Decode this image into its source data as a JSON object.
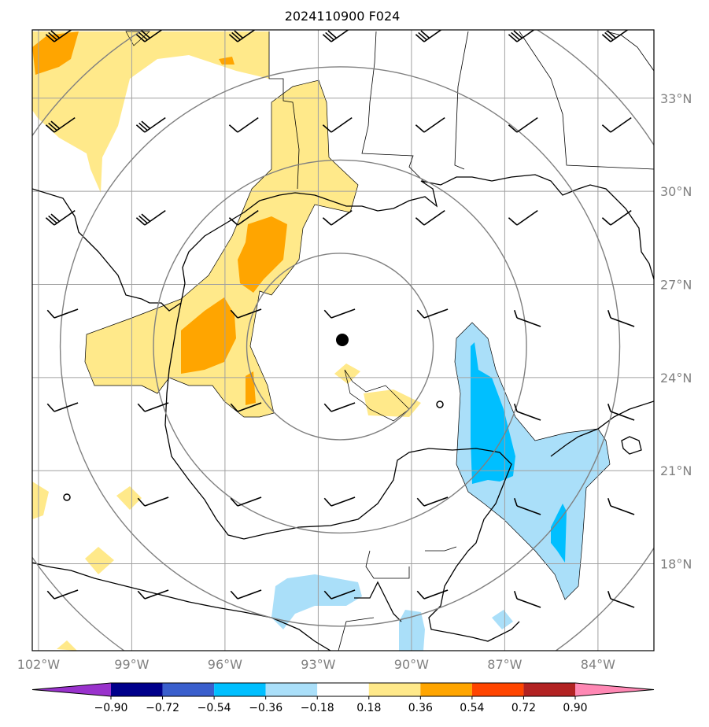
{
  "title": "2024110900 F024",
  "colors": {
    "positive_low": "#ffe98a",
    "positive_high": "#ffa500",
    "negative_low": "#aadff9",
    "negative_high": "#00bfff",
    "coast": "#000000",
    "grid": "#a0a0a0",
    "range_rings": "#808080",
    "center_marker": "#000000"
  },
  "map": {
    "lon_range": [
      -102.2,
      -82.2
    ],
    "lat_range": [
      15.2,
      35.2
    ],
    "center": {
      "lon": -92.3,
      "lat": 25.0
    },
    "lat_ticks": [
      {
        "value": 33,
        "label": "33°N"
      },
      {
        "value": 30,
        "label": "30°N"
      },
      {
        "value": 27,
        "label": "27°N"
      },
      {
        "value": 24,
        "label": "24°N"
      },
      {
        "value": 21,
        "label": "21°N"
      },
      {
        "value": 18,
        "label": "18°N"
      }
    ],
    "lon_ticks": [
      {
        "value": -102,
        "label": "102°W"
      },
      {
        "value": -99,
        "label": "99°W"
      },
      {
        "value": -96,
        "label": "96°W"
      },
      {
        "value": -93,
        "label": "93°W"
      },
      {
        "value": -90,
        "label": "90°W"
      },
      {
        "value": -87,
        "label": "87°W"
      },
      {
        "value": -84,
        "label": "84°W"
      }
    ],
    "range_rings_deg": [
      3,
      6,
      9,
      12
    ]
  },
  "colorbar": {
    "ticks": [
      "−0.90",
      "−0.72",
      "−0.54",
      "−0.36",
      "−0.18",
      "0.18",
      "0.36",
      "0.54",
      "0.72",
      "0.90"
    ],
    "colors": [
      "#9932cc",
      "#00008b",
      "#3a5fcd",
      "#00bfff",
      "#aadff9",
      "#ffffff",
      "#ffe98a",
      "#ffa500",
      "#ff4500",
      "#b22222",
      "#ff88b4"
    ]
  }
}
